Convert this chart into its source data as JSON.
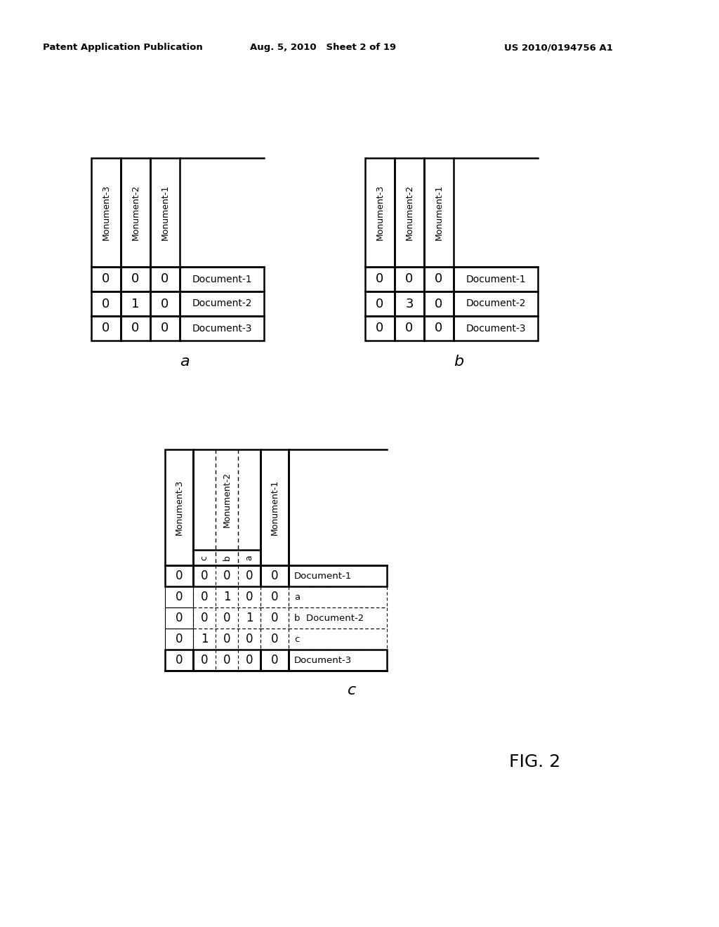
{
  "header_left": "Patent Application Publication",
  "header_mid": "Aug. 5, 2010   Sheet 2 of 19",
  "header_right": "US 2010/0194756 A1",
  "fig_label": "FIG. 2",
  "table_a": {
    "label": "a",
    "col_headers": [
      "Monument-3",
      "Monument-2",
      "Monument-1"
    ],
    "rows": [
      [
        0,
        0,
        0,
        "Document-1"
      ],
      [
        0,
        1,
        0,
        "Document-2"
      ],
      [
        0,
        0,
        0,
        "Document-3"
      ]
    ]
  },
  "table_b": {
    "label": "b",
    "col_headers": [
      "Monument-3",
      "Monument-2",
      "Monument-1"
    ],
    "rows": [
      [
        0,
        0,
        0,
        "Document-1"
      ],
      [
        0,
        3,
        0,
        "Document-2"
      ],
      [
        0,
        0,
        0,
        "Document-3"
      ]
    ]
  },
  "table_c": {
    "label": "c",
    "col_headers": [
      "Monument-3",
      "Monument-2",
      "Monument-1"
    ],
    "sub_labels": [
      "c",
      "b",
      "a"
    ],
    "rows": [
      [
        0,
        0,
        0,
        0,
        0,
        "Document-1",
        false
      ],
      [
        0,
        0,
        1,
        0,
        0,
        "a",
        true
      ],
      [
        0,
        0,
        0,
        1,
        0,
        "b  Document-2",
        true
      ],
      [
        0,
        1,
        0,
        0,
        0,
        "c",
        true
      ],
      [
        0,
        0,
        0,
        0,
        0,
        "Document-3",
        false
      ]
    ]
  },
  "bg_color": "#ffffff",
  "text_color": "#000000",
  "line_color": "#000000"
}
